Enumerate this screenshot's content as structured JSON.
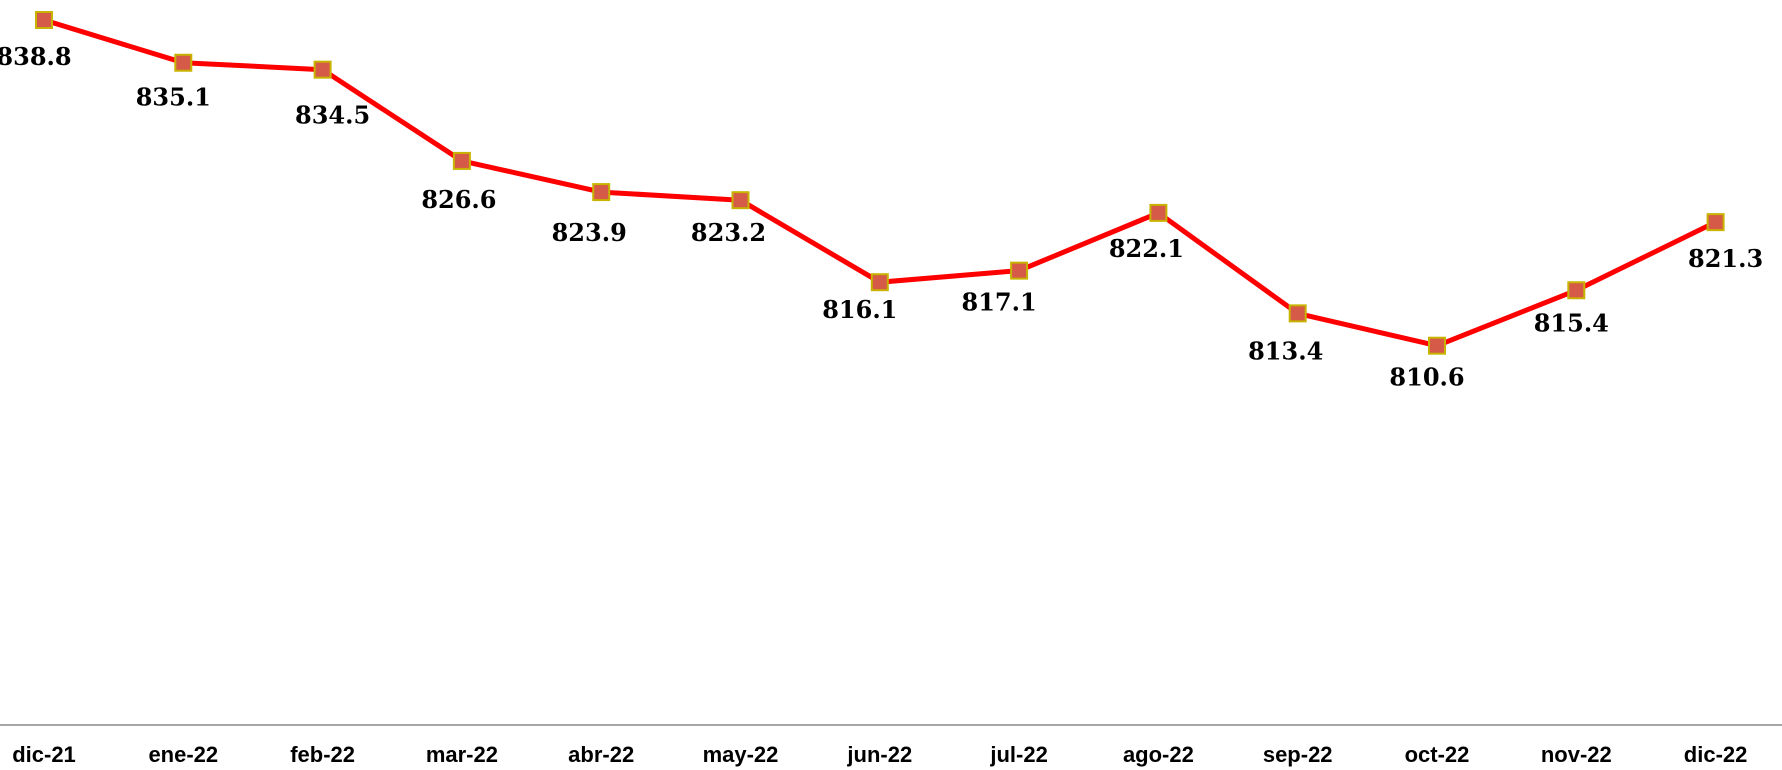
{
  "chart_data": {
    "type": "line",
    "title": "",
    "xlabel": "",
    "ylabel": "",
    "categories": [
      "dic-21",
      "ene-22",
      "feb-22",
      "mar-22",
      "abr-22",
      "may-22",
      "jun-22",
      "jul-22",
      "ago-22",
      "sep-22",
      "oct-22",
      "nov-22",
      "dic-22"
    ],
    "series": [
      {
        "values": [
          838.8,
          835.1,
          834.5,
          826.6,
          823.9,
          823.2,
          816.1,
          817.1,
          822.1,
          813.4,
          810.6,
          815.4,
          821.3
        ],
        "labels": [
          "838.8",
          "835.1",
          "834.5",
          "826.6",
          "823.9",
          "823.2",
          "816.1",
          "817.1",
          "822.1",
          "813.4",
          "810.6",
          "815.4",
          "821.3"
        ],
        "line_color": "#ff0000",
        "marker_fill": "#d55a47",
        "marker_border": "#c8b400"
      }
    ],
    "ylim": [
      780,
      840
    ],
    "grid": false,
    "legend": "none",
    "axis_color": "#a6a6a6"
  }
}
